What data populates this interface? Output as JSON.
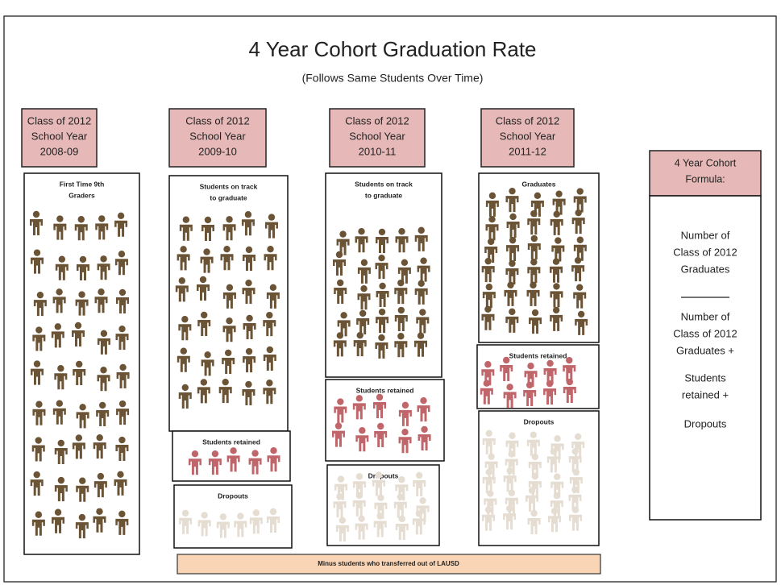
{
  "title": "4 Year Cohort Graduation Rate",
  "subtitle": "(Follows Same Students Over Time)",
  "columns": [
    {
      "header": [
        "Class of 2012",
        "School Year",
        "2008-09"
      ],
      "groups": [
        {
          "label": [
            "First Time 9th",
            "Graders"
          ]
        }
      ]
    },
    {
      "header": [
        "Class of 2012",
        "School Year",
        "2009-10"
      ],
      "groups": [
        {
          "label": [
            "Students on track",
            "to graduate"
          ]
        },
        {
          "label": [
            "Students retained"
          ]
        },
        {
          "label": [
            "Dropouts"
          ]
        }
      ]
    },
    {
      "header": [
        "Class of 2012",
        "School Year",
        "2010-11"
      ],
      "groups": [
        {
          "label": [
            "Students on track",
            "to graduate"
          ]
        },
        {
          "label": [
            "Students retained"
          ]
        },
        {
          "label": [
            "Dropouts"
          ]
        }
      ]
    },
    {
      "header": [
        "Class of 2012",
        "School Year",
        "2011-12"
      ],
      "groups": [
        {
          "label": [
            "Graduates"
          ]
        },
        {
          "label": [
            "Students retained"
          ]
        },
        {
          "label": [
            "Dropouts"
          ]
        }
      ]
    }
  ],
  "formula": {
    "title": [
      "4 Year Cohort",
      "Formula:"
    ],
    "numerator": [
      "Number of",
      "Class of 2012",
      "Graduates"
    ],
    "denominator": [
      "Number of",
      "Class of 2012",
      "Graduates +",
      "Students",
      "retained +",
      "Dropouts"
    ]
  },
  "footer": "Minus students who transferred  out of LAUSD"
}
